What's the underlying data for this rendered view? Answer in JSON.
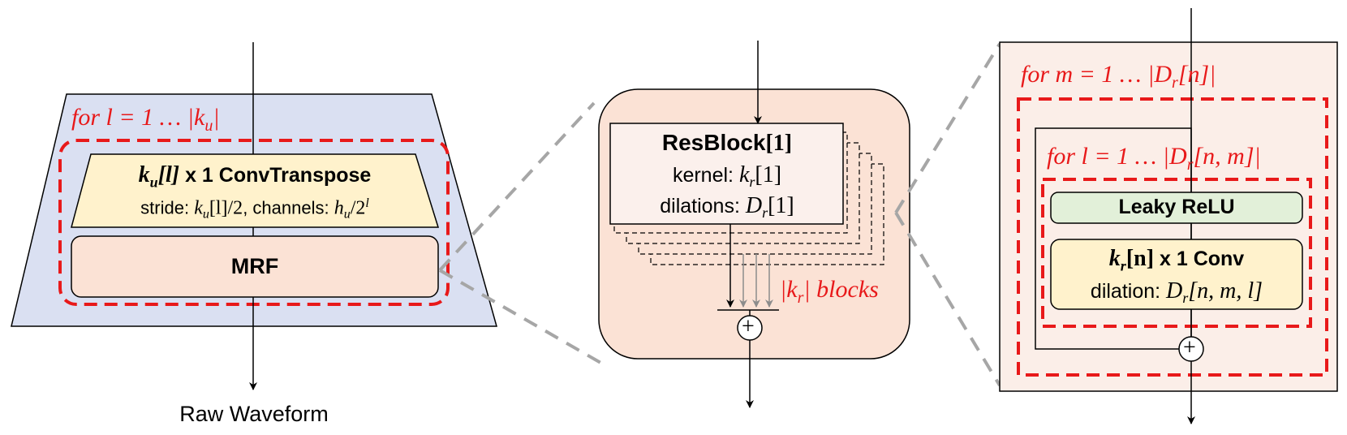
{
  "colors": {
    "red": "#e8191a",
    "blue_bg": "#dae0f2",
    "salmon": "#fbe2d5",
    "yellow": "#fff2cc",
    "green": "#e2f0d9",
    "light_panel": "#fbeee8",
    "resblock": "#fbf0ec",
    "gray_dash": "#a6a6a6"
  },
  "left": {
    "loop_label": "for  l = 1 … |k",
    "loop_sub": "u",
    "loop_end": "|",
    "conv_title_k": "k",
    "conv_title_sub": "u",
    "conv_title_idx": "[l]",
    "conv_title_rest": " x 1  ConvTranspose",
    "conv_sub_a": "stride: ",
    "conv_sub_b": "k",
    "conv_sub_c": "u",
    "conv_sub_d": "[l]/2",
    "conv_sub_e": ", channels: ",
    "conv_sub_f": "h",
    "conv_sub_g": "u",
    "conv_sub_h": "/2",
    "conv_sub_i": "l",
    "mrf_label": "MRF",
    "output_label": "Raw Waveform"
  },
  "middle": {
    "resblock_title": "ResBlock",
    "resblock_idx": "[1]",
    "kernel_a": "kernel: ",
    "kernel_b": "k",
    "kernel_c": "r",
    "kernel_d": "[1]",
    "dil_a": "dilations: ",
    "dil_b": "D",
    "dil_c": "r",
    "dil_d": "[1]",
    "blocks_a": "|k",
    "blocks_b": "r",
    "blocks_c": "| blocks",
    "sum_symbol": "+"
  },
  "right": {
    "outer_loop_a": "for  m = 1 … |D",
    "outer_loop_b": "r",
    "outer_loop_c": "[n]|",
    "inner_loop_a": "for  l = 1 … |D",
    "inner_loop_b": "r",
    "inner_loop_c": "[n, m]|",
    "relu_label": "Leaky ReLU",
    "conv_k": "k",
    "conv_sub": "r",
    "conv_idx": "[n]",
    "conv_rest": " x 1  Conv",
    "dil_a": "dilation: ",
    "dil_b": "D",
    "dil_c": "r",
    "dil_d": "[n, m, l]",
    "sum_symbol": "+"
  }
}
